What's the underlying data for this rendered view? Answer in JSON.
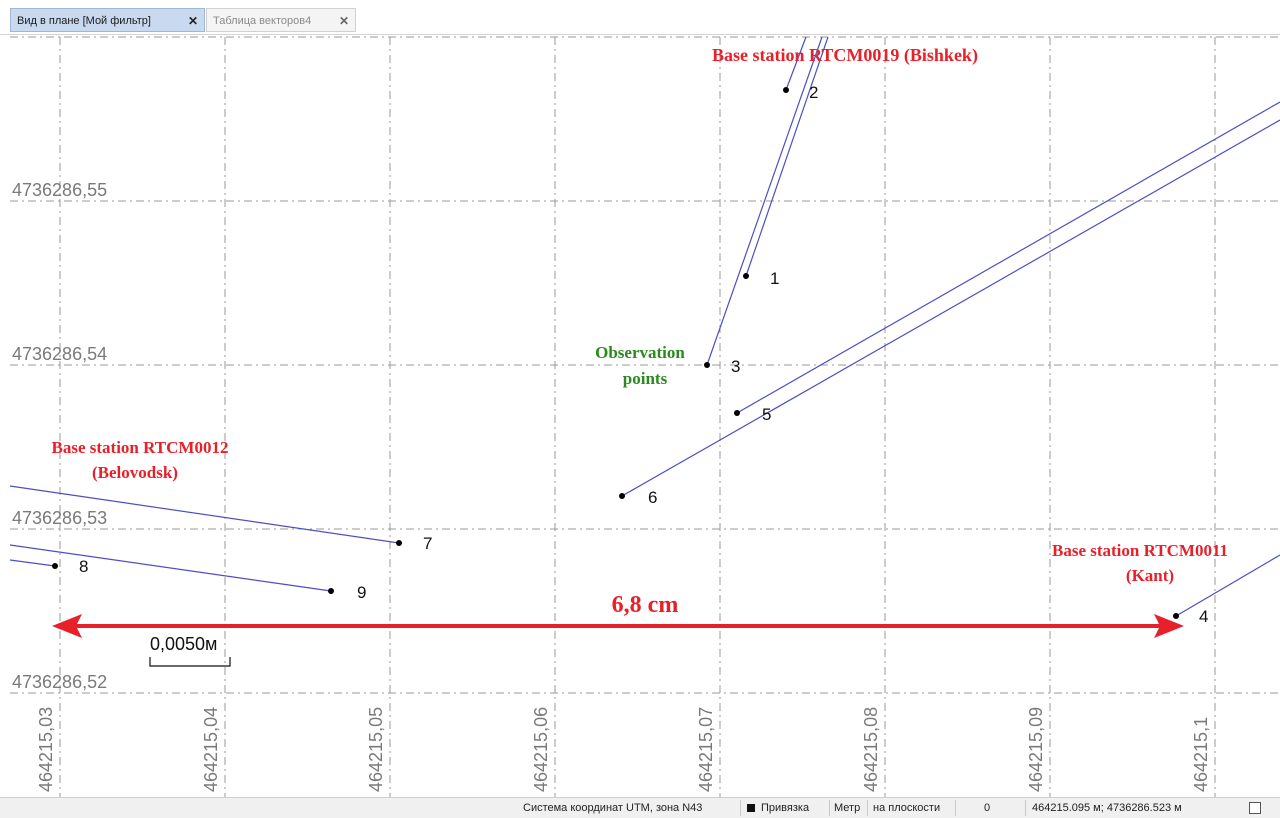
{
  "tabs": [
    {
      "label": "Вид в плане [Мой фильтр]",
      "close": "✕",
      "active": true
    },
    {
      "label": "Таблица векторов4",
      "close": "✕",
      "active": false
    }
  ],
  "plan_view": {
    "y_tick_labels": [
      "4736286,55",
      "4736286,54",
      "4736286,53",
      "4736286,52"
    ],
    "x_tick_labels": [
      "464215,03",
      "464215,04",
      "464215,05",
      "464215,06",
      "464215,07",
      "464215,08",
      "464215,09",
      "464215,1"
    ],
    "scale_bar_label": "0,0050м",
    "points": [
      {
        "id": "1",
        "label": "1"
      },
      {
        "id": "2",
        "label": "2"
      },
      {
        "id": "3",
        "label": "3"
      },
      {
        "id": "4",
        "label": "4"
      },
      {
        "id": "5",
        "label": "5"
      },
      {
        "id": "6",
        "label": "6"
      },
      {
        "id": "7",
        "label": "7"
      },
      {
        "id": "8",
        "label": "8"
      },
      {
        "id": "9",
        "label": "9"
      }
    ],
    "annotations": {
      "bishkek": "Base station RTCM0019  (Bishkek)",
      "observation_line1": "Observation",
      "observation_line2": "points",
      "belovodsk_line1": "Base station RTCM0012",
      "belovodsk_line2": "(Belovodsk)",
      "kant_line1": "Base station RTCM0011",
      "kant_line2": "(Kant)",
      "distance": "6,8 cm"
    },
    "colors": {
      "annotation_red": "#e8202a",
      "annotation_green": "#2a8a1e",
      "vector_line": "#4b4fc4",
      "grid": "#9a9a9a",
      "tick_label": "#7a7a7a"
    }
  },
  "status_bar": {
    "coordinate_system": "Система координат UTM, зона N43",
    "snap": "Привязка",
    "units": "Метр",
    "projection": "на плоскости",
    "zero": "0",
    "cursor_coords": "464215.095 м; 4736286.523 м"
  }
}
